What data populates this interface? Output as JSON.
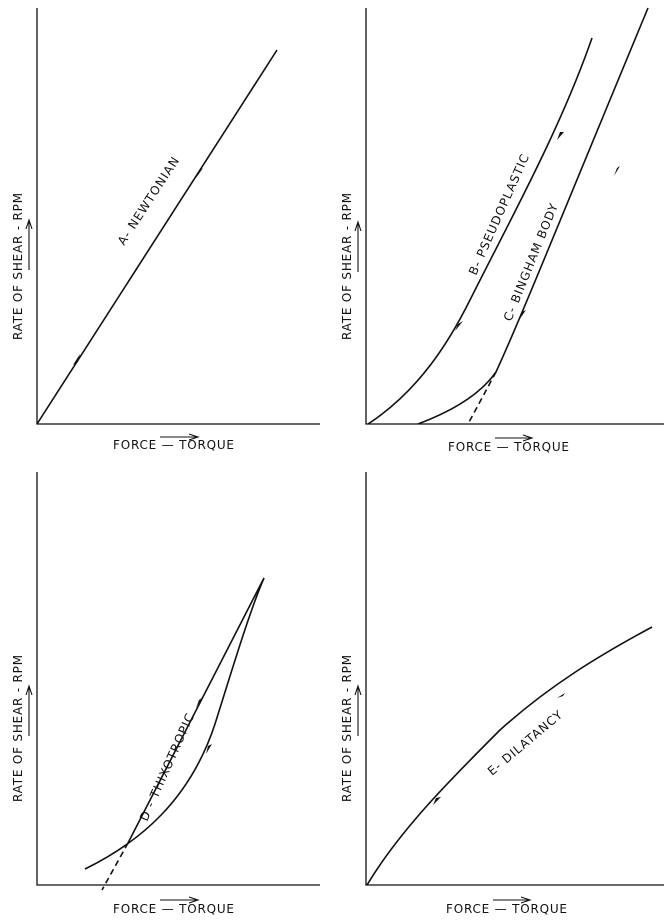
{
  "chart_data": [
    {
      "type": "line",
      "xlabel": "FORCE — TORQUE",
      "ylabel": "RATE OF SHEAR - RPM",
      "series": [
        {
          "name": "A- NEWTONIAN",
          "x": [
            0,
            1
          ],
          "y": [
            0,
            1
          ]
        }
      ]
    },
    {
      "type": "line",
      "xlabel": "FORCE — TORQUE",
      "ylabel": "RATE OF SHEAR - RPM",
      "series": [
        {
          "name": "B- PSEUDOPLASTIC",
          "x": [
            0,
            0.1,
            0.2,
            0.3,
            0.4,
            0.5,
            0.6,
            0.7
          ],
          "y": [
            0,
            0.1,
            0.22,
            0.36,
            0.52,
            0.7,
            0.88,
            1.0
          ]
        },
        {
          "name": "C- BINGHAM BODY",
          "x": [
            0.18,
            0.3,
            0.4,
            0.5,
            0.6,
            0.7,
            0.8,
            0.93
          ],
          "y": [
            0,
            0.1,
            0.17,
            0.32,
            0.48,
            0.63,
            0.78,
            0.96
          ]
        }
      ]
    },
    {
      "type": "line",
      "xlabel": "FORCE — TORQUE",
      "ylabel": "RATE OF SHEAR - RPM",
      "series": [
        {
          "name": "D - THIXOTROPIC",
          "x": [
            0,
            0.3,
            0.5,
            0.7,
            0.85,
            1.0
          ],
          "y": [
            0,
            0.15,
            0.3,
            0.55,
            0.85,
            1.0
          ]
        }
      ]
    },
    {
      "type": "line",
      "xlabel": "FORCE — TORQUE",
      "ylabel": "RATE OF SHEAR - RPM",
      "series": [
        {
          "name": "E- DILATANCY",
          "x": [
            0,
            0.2,
            0.4,
            0.6,
            0.8,
            1.0
          ],
          "y": [
            0,
            0.25,
            0.48,
            0.66,
            0.82,
            0.95
          ]
        }
      ]
    }
  ],
  "panels": [
    {
      "xlabel": "FORCE — TORQUE",
      "ylabel": "RATE OF SHEAR - RPM",
      "curve_labels": [
        "A- NEWTONIAN"
      ]
    },
    {
      "xlabel": "FORCE — TORQUE",
      "ylabel": "RATE OF SHEAR - RPM",
      "curve_labels": [
        "B- PSEUDOPLASTIC",
        "C- BINGHAM BODY"
      ]
    },
    {
      "xlabel": "FORCE — TORQUE",
      "ylabel": "RATE OF SHEAR - RPM",
      "curve_labels": [
        "D - THIXOTROPIC"
      ]
    },
    {
      "xlabel": "FORCE — TORQUE",
      "ylabel": "RATE OF SHEAR - RPM",
      "curve_labels": [
        "E- DILATANCY"
      ]
    }
  ]
}
